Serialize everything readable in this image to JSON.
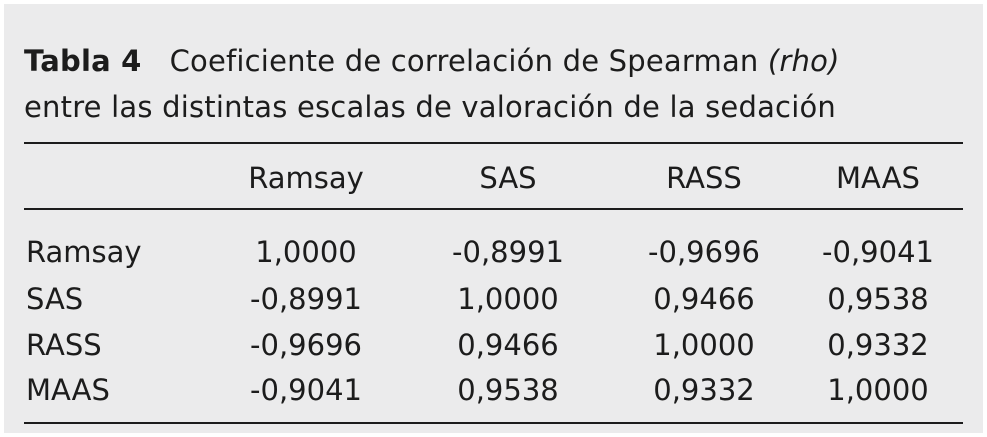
{
  "table": {
    "caption": {
      "label": "Tabla 4",
      "text_before": "Coeficiente de correlación de Spearman ",
      "text_italic": "(rho)",
      "text_line2": "entre las distintas escalas de valoración de la sedación"
    },
    "columns": [
      "Ramsay",
      "SAS",
      "RASS",
      "MAAS"
    ],
    "rows": [
      {
        "label": "Ramsay",
        "values": [
          "1,0000",
          "-0,8991",
          "-0,9696",
          "-0,9041"
        ]
      },
      {
        "label": "SAS",
        "values": [
          "-0,8991",
          "1,0000",
          "0,9466",
          "0,9538"
        ]
      },
      {
        "label": "RASS",
        "values": [
          "-0,9696",
          "0,9466",
          "1,0000",
          "0,9332"
        ]
      },
      {
        "label": "MAAS",
        "values": [
          "-0,9041",
          "0,9538",
          "0,9332",
          "1,0000"
        ]
      }
    ]
  }
}
